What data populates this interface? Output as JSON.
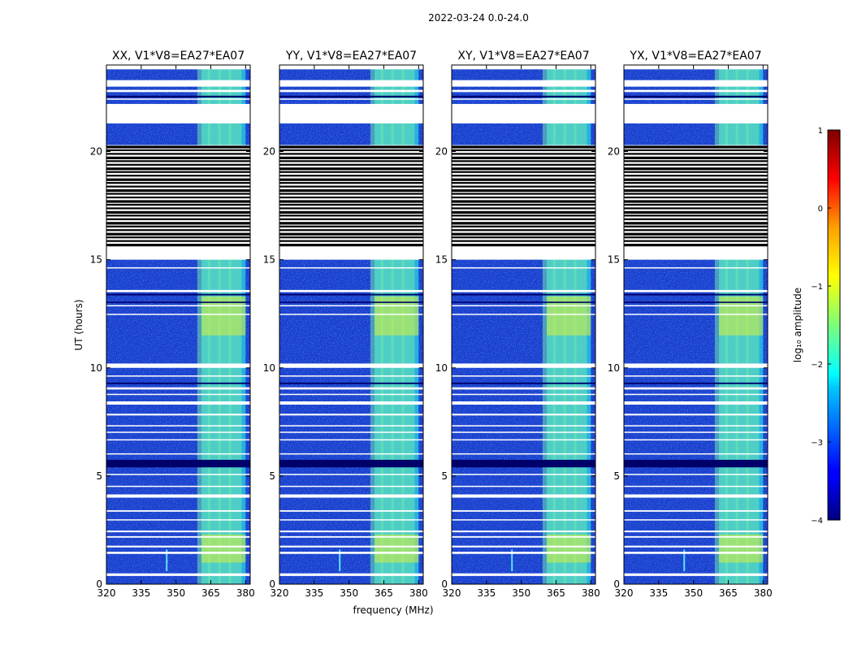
{
  "figure_title": "2022-03-24 0.0-24.0",
  "chart_data": {
    "type": "heatmap",
    "xlabel": "frequency (MHz)",
    "ylabel": "UT (hours)",
    "xlim": [
      320,
      382
    ],
    "ylim": [
      0,
      24
    ],
    "x_ticks": [
      320,
      335,
      350,
      365,
      380
    ],
    "y_ticks": [
      0,
      5,
      10,
      15,
      20
    ],
    "panels": [
      {
        "title": "XX, V1*V8=EA27*EA07"
      },
      {
        "title": "YY, V1*V8=EA27*EA07"
      },
      {
        "title": "XY, V1*V8=EA27*EA07"
      },
      {
        "title": "YX, V1*V8=EA27*EA07"
      }
    ],
    "colorbar": {
      "label": "log₁₀ amplitude",
      "vmin": -4,
      "vmax": 1,
      "ticks": [
        1,
        0,
        -1,
        -2,
        -3,
        -4
      ],
      "tick_labels": [
        "1",
        "0",
        "−1",
        "−2",
        "−3",
        "−4"
      ],
      "colormap": "jet"
    },
    "bright_channel_range_mhz": [
      361,
      380
    ],
    "bright_columns_mhz": [
      362,
      366.5,
      371,
      375.5
    ],
    "blank_time_ranges_hours": [
      [
        0.38,
        0.5
      ],
      [
        1.4,
        1.5
      ],
      [
        1.7,
        1.78
      ],
      [
        2.15,
        2.22
      ],
      [
        2.4,
        2.48
      ],
      [
        2.95,
        3.0
      ],
      [
        3.35,
        3.42
      ],
      [
        4.0,
        4.15
      ],
      [
        4.5,
        4.55
      ],
      [
        5.05,
        5.1
      ],
      [
        6.0,
        6.05
      ],
      [
        6.65,
        6.7
      ],
      [
        7.0,
        7.05
      ],
      [
        7.3,
        7.35
      ],
      [
        7.8,
        7.88
      ],
      [
        8.3,
        8.45
      ],
      [
        8.75,
        8.8
      ],
      [
        9.0,
        9.1
      ],
      [
        9.6,
        9.65
      ],
      [
        10.0,
        10.2
      ],
      [
        12.45,
        12.5
      ],
      [
        12.85,
        12.9
      ],
      [
        13.5,
        13.6
      ],
      [
        14.6,
        14.65
      ],
      [
        15.0,
        20.3
      ],
      [
        21.3,
        22.2
      ],
      [
        22.4,
        22.45
      ],
      [
        22.75,
        22.85
      ],
      [
        23.0,
        23.3
      ],
      [
        23.8,
        24.0
      ]
    ],
    "dark_time_ranges_hours": [
      [
        5.4,
        5.75
      ],
      [
        9.25,
        9.32
      ],
      [
        13.0,
        13.06
      ],
      [
        13.35,
        13.42
      ],
      [
        22.5,
        22.58
      ]
    ],
    "flagged_band_hours": [
      15.6,
      20.3
    ],
    "flagged_line_count": 28,
    "bright_time_ranges_hours": [
      [
        1.0,
        2.3
      ],
      [
        11.5,
        13.3
      ]
    ],
    "spike_frequency_mhz": 346
  }
}
